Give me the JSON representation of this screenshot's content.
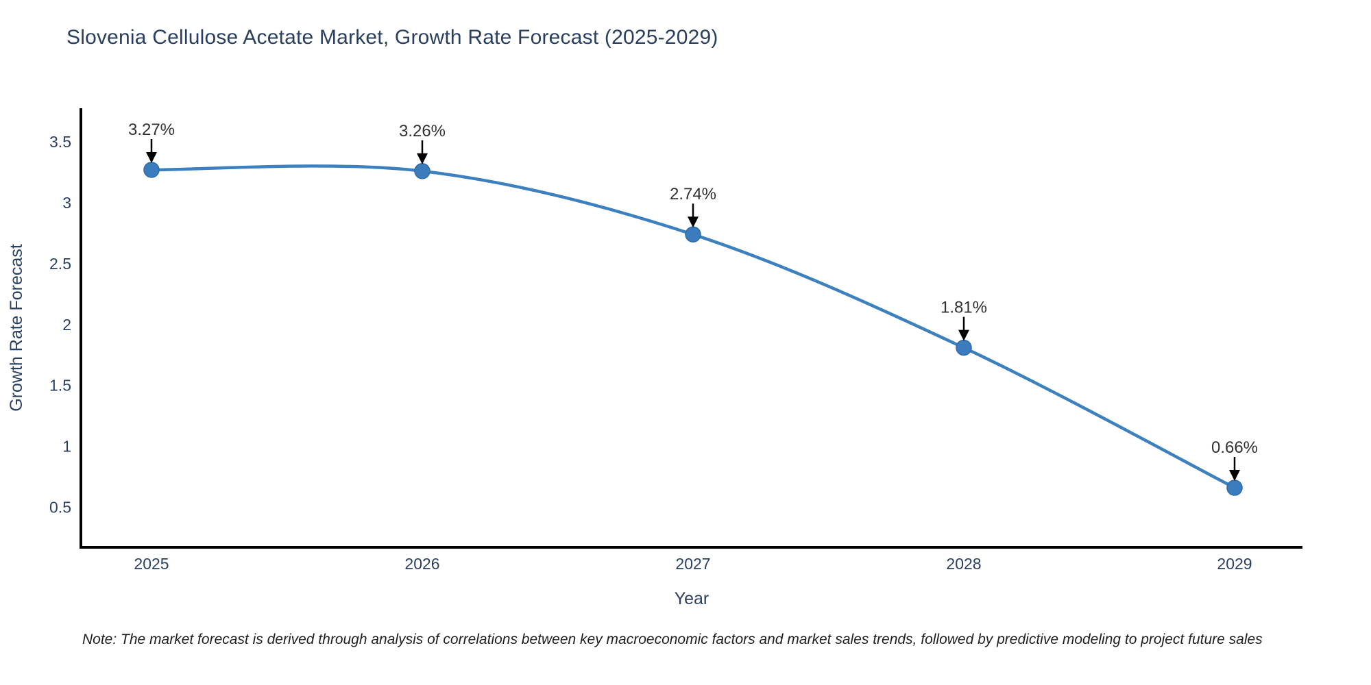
{
  "title": "Slovenia Cellulose Acetate Market, Growth Rate Forecast (2025-2029)",
  "note": "Note: The market forecast is derived through analysis of correlations between key macroeconomic factors and market sales trends, followed by predictive modeling to project future sales",
  "chart_data": {
    "type": "line",
    "line_shape": "spline",
    "title": "Slovenia Cellulose Acetate Market, Growth Rate Forecast (2025-2029)",
    "xlabel": "Year",
    "ylabel": "Growth Rate Forecast",
    "x": [
      "2025",
      "2026",
      "2027",
      "2028",
      "2029"
    ],
    "series": [
      {
        "name": "Growth Rate Forecast",
        "values": [
          3.27,
          3.26,
          2.74,
          1.81,
          0.66
        ]
      }
    ],
    "point_labels": [
      "3.27%",
      "3.26%",
      "2.74%",
      "1.81%",
      "0.66%"
    ],
    "y_ticks": [
      3.5,
      3.0,
      2.5,
      2.0,
      1.5,
      1.0,
      0.5
    ],
    "ylim": [
      0.15,
      3.85
    ],
    "grid": false,
    "legend_position": "none",
    "colors": {
      "line": "#3c80c0",
      "marker_fill": "#3a7cbd",
      "marker_edge": "#2f6ba3",
      "axis_line": "#000000",
      "tick_text": "#2a3f5f",
      "axis_title_text": "#2a3f5f",
      "annotation_text": "#303030",
      "annotation_arrow": "#000000"
    }
  }
}
